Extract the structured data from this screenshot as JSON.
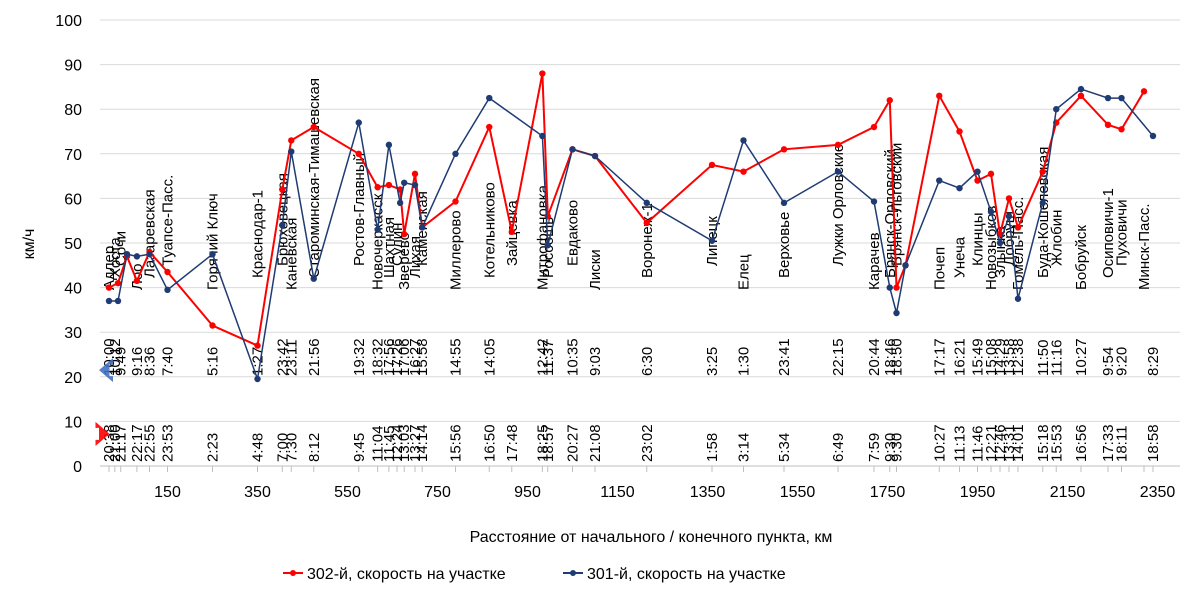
{
  "chart_data": {
    "type": "line",
    "xlabel": "Расстояние от начального / конечного пункта, км",
    "ylabel": "км/ч",
    "xlim": [
      0,
      2400
    ],
    "ylim": [
      0,
      100
    ],
    "x_ticks": [
      150,
      350,
      550,
      750,
      950,
      1150,
      1350,
      1550,
      1750,
      1950,
      2150,
      2350
    ],
    "y_ticks": [
      0,
      10,
      20,
      30,
      40,
      50,
      60,
      70,
      80,
      90,
      100
    ],
    "y_grid": true,
    "legend_position": "bottom",
    "colors": {
      "s302": "#ff0000",
      "s301": "#1f3b73",
      "arrow_301": "#4472c4",
      "arrow_302": "#ff0000"
    },
    "series": [
      {
        "name": "302-й, скорость на участке",
        "points": [
          [
            20,
            40
          ],
          [
            40,
            41
          ],
          [
            60,
            47
          ],
          [
            82,
            41.5
          ],
          [
            110,
            48
          ],
          [
            150,
            43.5
          ],
          [
            250,
            31.5
          ],
          [
            350,
            27
          ],
          [
            405,
            62
          ],
          [
            425,
            73
          ],
          [
            475,
            76
          ],
          [
            575,
            70
          ],
          [
            617,
            62.5
          ],
          [
            642,
            63
          ],
          [
            667,
            62
          ],
          [
            676,
            52
          ],
          [
            700,
            65.5
          ],
          [
            716,
            53.5
          ],
          [
            790,
            59.3
          ],
          [
            865,
            76
          ],
          [
            915,
            52.5
          ],
          [
            983,
            88
          ],
          [
            995,
            56
          ],
          [
            1050,
            71
          ],
          [
            1100,
            69.5
          ],
          [
            1215,
            54.5
          ],
          [
            1360,
            67.5
          ],
          [
            1430,
            66
          ],
          [
            1520,
            71
          ],
          [
            1640,
            72
          ],
          [
            1720,
            76
          ],
          [
            1755,
            82
          ],
          [
            1770,
            40
          ],
          [
            1790,
            45
          ],
          [
            1865,
            83
          ],
          [
            1910,
            75
          ],
          [
            1950,
            64
          ],
          [
            1980,
            65.5
          ],
          [
            2000,
            52
          ],
          [
            2020,
            60
          ],
          [
            2040,
            53.5
          ],
          [
            2095,
            66
          ],
          [
            2125,
            77
          ],
          [
            2180,
            83
          ],
          [
            2240,
            76.5
          ],
          [
            2270,
            75.5
          ],
          [
            2320,
            84
          ]
        ]
      },
      {
        "name": "301-й, скорость на участке",
        "points": [
          [
            20,
            37
          ],
          [
            40,
            37
          ],
          [
            60,
            47.5
          ],
          [
            82,
            47
          ],
          [
            110,
            47.5
          ],
          [
            150,
            39.5
          ],
          [
            250,
            47.5
          ],
          [
            350,
            19.5
          ],
          [
            405,
            54
          ],
          [
            425,
            70.5
          ],
          [
            475,
            42
          ],
          [
            575,
            77
          ],
          [
            617,
            53
          ],
          [
            642,
            72
          ],
          [
            667,
            59
          ],
          [
            676,
            63.5
          ],
          [
            700,
            63
          ],
          [
            716,
            53.5
          ],
          [
            790,
            70
          ],
          [
            865,
            82.5
          ],
          [
            983,
            74
          ],
          [
            995,
            49.5
          ],
          [
            1050,
            71
          ],
          [
            1100,
            69.5
          ],
          [
            1215,
            59
          ],
          [
            1360,
            50.5
          ],
          [
            1430,
            73
          ],
          [
            1520,
            59
          ],
          [
            1640,
            66
          ],
          [
            1720,
            59.3
          ],
          [
            1755,
            40
          ],
          [
            1770,
            34.3
          ],
          [
            1790,
            45
          ],
          [
            1865,
            64
          ],
          [
            1910,
            62.3
          ],
          [
            1950,
            66
          ],
          [
            1980,
            57
          ],
          [
            2000,
            50
          ],
          [
            2020,
            56
          ],
          [
            2040,
            37.5
          ],
          [
            2095,
            59
          ],
          [
            2125,
            80
          ],
          [
            2180,
            84.5
          ],
          [
            2240,
            82.5
          ],
          [
            2270,
            82.5
          ],
          [
            2340,
            74
          ]
        ]
      }
    ],
    "stations": [
      {
        "name": "Адлер",
        "x": 20
      },
      {
        "name": "Хоста",
        "x": 33
      },
      {
        "name": "Сочи",
        "x": 46
      },
      {
        "name": "Лоо",
        "x": 82
      },
      {
        "name": "Лазаревская",
        "x": 110
      },
      {
        "name": "Туапсе-Пасс.",
        "x": 150
      },
      {
        "name": "Горячий Ключ",
        "x": 250
      },
      {
        "name": "Краснодар-1",
        "x": 350
      },
      {
        "name": "Брюховецкая",
        "x": 405
      },
      {
        "name": "Каневская",
        "x": 425
      },
      {
        "name": "Староминская-Тимашевская",
        "x": 475
      },
      {
        "name": "Ростов-Главный",
        "x": 575
      },
      {
        "name": "Новочеркасск",
        "x": 617
      },
      {
        "name": "Шахтная",
        "x": 642
      },
      {
        "name": "Сулин",
        "x": 660
      },
      {
        "name": "Зверево",
        "x": 676
      },
      {
        "name": "Лихая",
        "x": 700
      },
      {
        "name": "Каменская",
        "x": 716
      },
      {
        "name": "Миллерово",
        "x": 790
      },
      {
        "name": "Котельниково",
        "x": 865
      },
      {
        "name": "Зайцевка",
        "x": 915
      },
      {
        "name": "Митрофановка",
        "x": 983
      },
      {
        "name": "Россошь",
        "x": 995
      },
      {
        "name": "Евдаково",
        "x": 1050
      },
      {
        "name": "Лиски",
        "x": 1100
      },
      {
        "name": "Воронеж-1",
        "x": 1215
      },
      {
        "name": "Липецк",
        "x": 1360
      },
      {
        "name": "Елец",
        "x": 1430
      },
      {
        "name": "Верховье",
        "x": 1520
      },
      {
        "name": "Лужки Орловские",
        "x": 1640
      },
      {
        "name": "Карачев",
        "x": 1720
      },
      {
        "name": "Брянск-Орловский",
        "x": 1755
      },
      {
        "name": "Брянск-Льговский",
        "x": 1770
      },
      {
        "name": "Почеп",
        "x": 1865
      },
      {
        "name": "Унеча",
        "x": 1910
      },
      {
        "name": "Клинцы",
        "x": 1950
      },
      {
        "name": "Новозыбков",
        "x": 1980
      },
      {
        "name": "Злынка",
        "x": 2000
      },
      {
        "name": "Добруш",
        "x": 2020
      },
      {
        "name": "Гомель-Пасс.",
        "x": 2040
      },
      {
        "name": "Буда-Кошелевская",
        "x": 2095
      },
      {
        "name": "Жлобин",
        "x": 2125
      },
      {
        "name": "Бобруйск",
        "x": 2180
      },
      {
        "name": "Осиповичи-1",
        "x": 2240
      },
      {
        "name": "Пуховичи",
        "x": 2270
      },
      {
        "name": "Минск-Пасс.",
        "x": 2320
      }
    ],
    "times_301": [
      {
        "t": "10:00",
        "x": 20
      },
      {
        "t": "10:12",
        "x": 33
      },
      {
        "t": "9:49",
        "x": 46
      },
      {
        "t": "9:16",
        "x": 82
      },
      {
        "t": "8:36",
        "x": 110
      },
      {
        "t": "7:40",
        "x": 150
      },
      {
        "t": "5:16",
        "x": 250
      },
      {
        "t": "1:27",
        "x": 350
      },
      {
        "t": "23:42",
        "x": 405
      },
      {
        "t": "23:11",
        "x": 425
      },
      {
        "t": "21:56",
        "x": 475
      },
      {
        "t": "19:32",
        "x": 575
      },
      {
        "t": "18:32",
        "x": 617
      },
      {
        "t": "17:56",
        "x": 642
      },
      {
        "t": "17:26",
        "x": 660
      },
      {
        "t": "17:06",
        "x": 676
      },
      {
        "t": "16:27",
        "x": 700
      },
      {
        "t": "15:58",
        "x": 716
      },
      {
        "t": "14:55",
        "x": 790
      },
      {
        "t": "14:05",
        "x": 865
      },
      {
        "t": "12:42",
        "x": 983
      },
      {
        "t": "11:37",
        "x": 995
      },
      {
        "t": "10:35",
        "x": 1050
      },
      {
        "t": "9:03",
        "x": 1100
      },
      {
        "t": "6:30",
        "x": 1215
      },
      {
        "t": "3:25",
        "x": 1360
      },
      {
        "t": "1:30",
        "x": 1430
      },
      {
        "t": "23:41",
        "x": 1520
      },
      {
        "t": "22:15",
        "x": 1640
      },
      {
        "t": "20:44",
        "x": 1720
      },
      {
        "t": "18:46",
        "x": 1755
      },
      {
        "t": "18:50",
        "x": 1770
      },
      {
        "t": "17:17",
        "x": 1865
      },
      {
        "t": "16:21",
        "x": 1910
      },
      {
        "t": "15:49",
        "x": 1950
      },
      {
        "t": "15:08",
        "x": 1980
      },
      {
        "t": "14:29",
        "x": 2000
      },
      {
        "t": "13:58",
        "x": 2020
      },
      {
        "t": "12:38",
        "x": 2040
      },
      {
        "t": "11:50",
        "x": 2095
      },
      {
        "t": "11:16",
        "x": 2125
      },
      {
        "t": "10:27",
        "x": 2180
      },
      {
        "t": "9:54",
        "x": 2240
      },
      {
        "t": "9:20",
        "x": 2270
      },
      {
        "t": "8:29",
        "x": 2340
      }
    ],
    "times_302": [
      {
        "t": "20:38",
        "x": 20
      },
      {
        "t": "21:00",
        "x": 33
      },
      {
        "t": "21:17",
        "x": 46
      },
      {
        "t": "22:17",
        "x": 82
      },
      {
        "t": "22:55",
        "x": 110
      },
      {
        "t": "23:53",
        "x": 150
      },
      {
        "t": "2:23",
        "x": 250
      },
      {
        "t": "4:48",
        "x": 350
      },
      {
        "t": "7:00",
        "x": 405
      },
      {
        "t": "7:30",
        "x": 425
      },
      {
        "t": "8:12",
        "x": 475
      },
      {
        "t": "9:45",
        "x": 575
      },
      {
        "t": "11:04",
        "x": 617
      },
      {
        "t": "11:45",
        "x": 642
      },
      {
        "t": "12:24",
        "x": 660
      },
      {
        "t": "13:03",
        "x": 676
      },
      {
        "t": "13:27",
        "x": 700
      },
      {
        "t": "14:14",
        "x": 716
      },
      {
        "t": "15:56",
        "x": 790
      },
      {
        "t": "16:50",
        "x": 865
      },
      {
        "t": "17:48",
        "x": 915
      },
      {
        "t": "18:25",
        "x": 983
      },
      {
        "t": "18:57",
        "x": 995
      },
      {
        "t": "20:27",
        "x": 1050
      },
      {
        "t": "21:08",
        "x": 1100
      },
      {
        "t": "23:02",
        "x": 1215
      },
      {
        "t": "1:58",
        "x": 1360
      },
      {
        "t": "3:14",
        "x": 1430
      },
      {
        "t": "5:34",
        "x": 1520
      },
      {
        "t": "6:49",
        "x": 1640
      },
      {
        "t": "7:59",
        "x": 1720
      },
      {
        "t": "9:30",
        "x": 1755
      },
      {
        "t": "9:30",
        "x": 1770
      },
      {
        "t": "10:27",
        "x": 1865
      },
      {
        "t": "11:13",
        "x": 1910
      },
      {
        "t": "11:46",
        "x": 1950
      },
      {
        "t": "12:21",
        "x": 1980
      },
      {
        "t": "12:46",
        "x": 2000
      },
      {
        "t": "13:31",
        "x": 2020
      },
      {
        "t": "14:01",
        "x": 2040
      },
      {
        "t": "15:18",
        "x": 2095
      },
      {
        "t": "15:53",
        "x": 2125
      },
      {
        "t": "16:56",
        "x": 2180
      },
      {
        "t": "17:33",
        "x": 2240
      },
      {
        "t": "18:11",
        "x": 2270
      },
      {
        "t": "18:58",
        "x": 2340
      }
    ],
    "arrows": [
      {
        "series": "301",
        "direction": "left",
        "y": 21.5,
        "x_from": 20,
        "x_to": 110
      },
      {
        "series": "302",
        "direction": "right",
        "y": 7.2,
        "x_from": 20,
        "x_to": 110
      }
    ]
  }
}
